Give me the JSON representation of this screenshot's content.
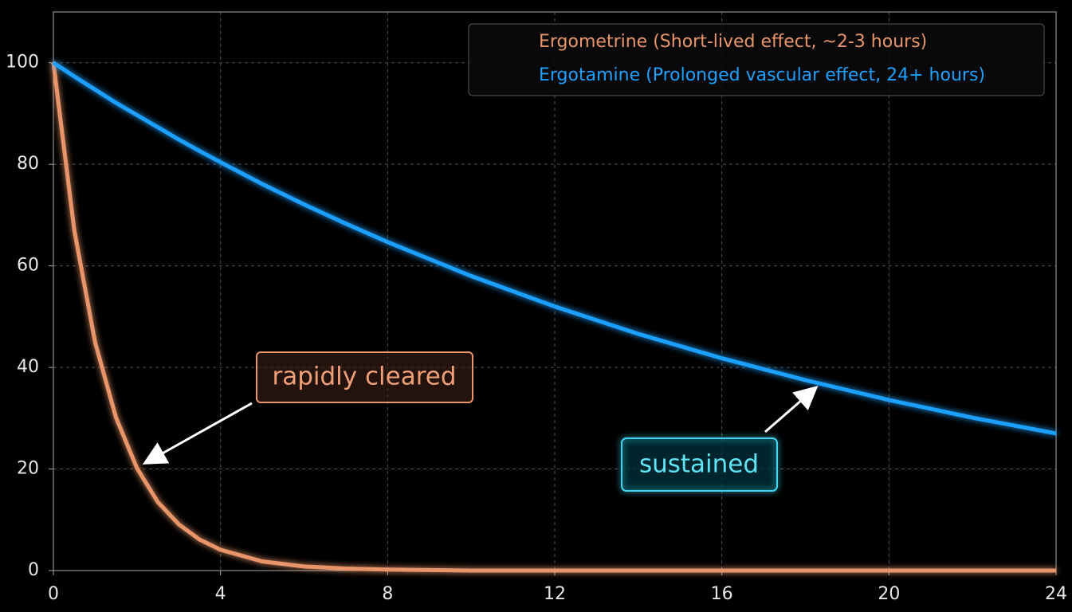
{
  "chart_data": {
    "type": "line",
    "x": [
      0,
      0.5,
      1,
      1.5,
      2,
      2.5,
      3,
      3.5,
      4,
      5,
      6,
      7,
      8,
      10,
      12,
      14,
      16,
      18,
      20,
      22,
      24
    ],
    "series": [
      {
        "name": "Ergometrine (Short-lived effect, ~2-3 hours)",
        "color": "#e8956a",
        "values": [
          100,
          67.0,
          44.9,
          30.1,
          20.2,
          13.5,
          9.1,
          6.1,
          4.1,
          1.8,
          0.8,
          0.4,
          0.2,
          0,
          0,
          0,
          0,
          0,
          0,
          0,
          0
        ]
      },
      {
        "name": "Ergotamine (Prolonged vascular effect, 24+ hours)",
        "color": "#1ea0ff",
        "values": [
          100,
          97.3,
          94.7,
          92.1,
          89.7,
          87.3,
          84.9,
          82.6,
          80.4,
          76.1,
          72.1,
          68.3,
          64.7,
          58.0,
          52.0,
          46.6,
          41.8,
          37.5,
          33.6,
          30.1,
          27.0
        ]
      }
    ],
    "xlim": [
      0,
      24
    ],
    "xticks": [
      0,
      4,
      8,
      12,
      16,
      20,
      24
    ],
    "ylim": [
      0,
      110
    ],
    "yticks": [
      0,
      20,
      40,
      60,
      80,
      100
    ],
    "grid": true,
    "legend": "upper right",
    "annotations": [
      "rapidly cleared",
      "sustained"
    ]
  }
}
